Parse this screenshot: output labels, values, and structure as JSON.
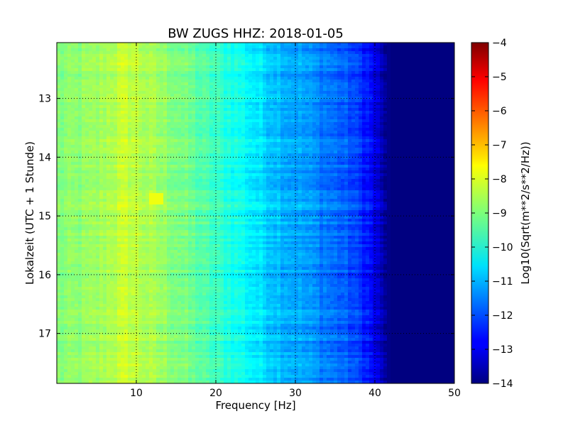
{
  "chart_data": {
    "type": "heatmap",
    "title": "BW ZUGS HHZ: 2018-01-05",
    "xlabel": "Frequency [Hz]",
    "ylabel": "Lokalzeit (UTC + 1 Stunde)",
    "xlim": [
      0,
      50
    ],
    "ylim": [
      12.05,
      17.85
    ],
    "y_inverted": true,
    "xticks": [
      10,
      20,
      30,
      40,
      50
    ],
    "xtick_labels": [
      "10",
      "20",
      "30",
      "40",
      "50"
    ],
    "yticks": [
      13,
      14,
      15,
      16,
      17
    ],
    "ytick_labels": [
      "13",
      "14",
      "15",
      "16",
      "17"
    ],
    "grid": true,
    "colormap": "jet",
    "colorbar": {
      "label": "Log10(Sqrt(m**2/s**2/Hz))",
      "min": -14,
      "max": -4,
      "ticks": [
        -4,
        -5,
        -6,
        -7,
        -8,
        -9,
        -10,
        -11,
        -12,
        -13,
        -14
      ],
      "tick_labels": [
        "−4",
        "−5",
        "−6",
        "−7",
        "−8",
        "−9",
        "−10",
        "−11",
        "−12",
        "−13",
        "−14"
      ]
    },
    "spectrum_profile": {
      "frequency_hz": [
        0,
        2,
        5,
        7,
        9,
        11,
        13,
        15,
        17,
        19,
        21,
        23,
        25,
        27,
        29,
        31,
        33,
        35,
        37,
        39,
        40,
        41,
        42,
        50
      ],
      "log10_amplitude": [
        -9.0,
        -8.9,
        -8.75,
        -8.45,
        -8.3,
        -8.55,
        -8.75,
        -8.95,
        -9.25,
        -9.55,
        -9.85,
        -10.1,
        -10.45,
        -10.75,
        -11.0,
        -11.2,
        -11.45,
        -11.7,
        -12.0,
        -12.5,
        -13.0,
        -13.6,
        -14.0,
        -14.0
      ]
    },
    "notable_features": [
      {
        "time": 14.8,
        "log10_amplitude_offset": 0.3
      },
      {
        "time": 14.72,
        "frequency_hz": 12.5,
        "log10_amplitude": -7.9
      }
    ]
  }
}
